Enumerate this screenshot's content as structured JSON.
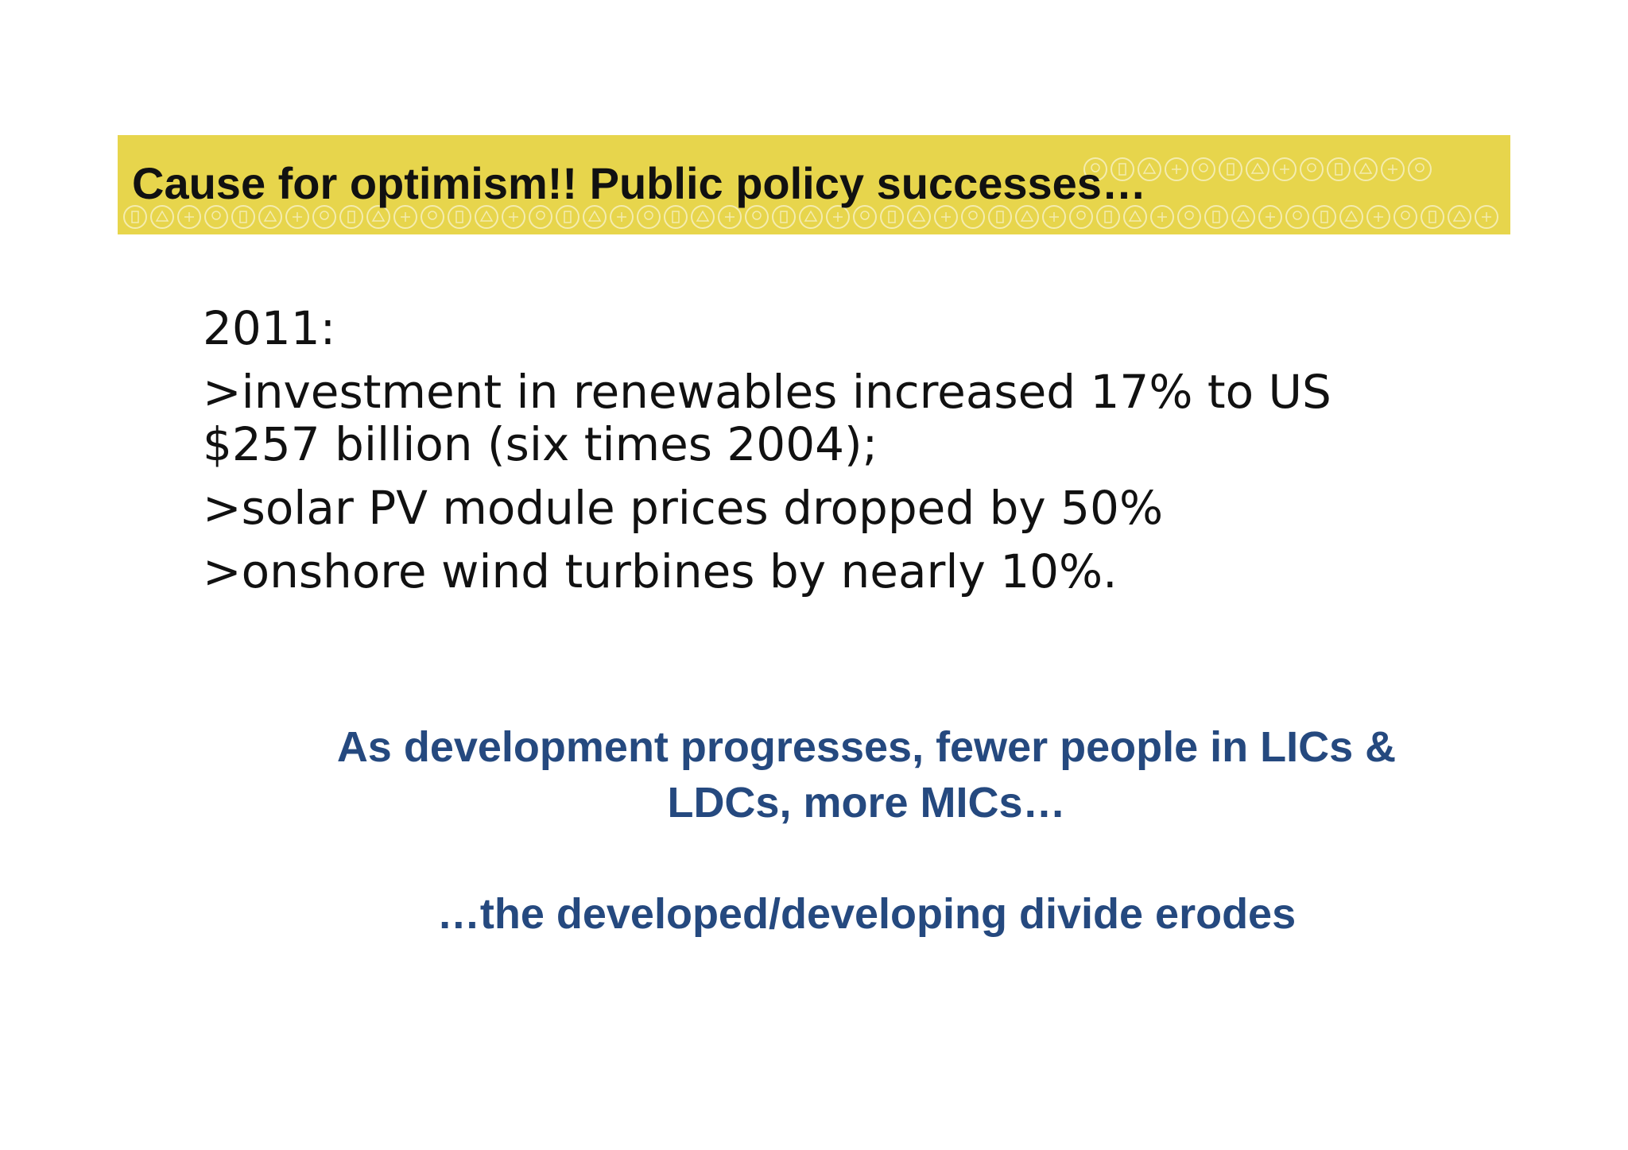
{
  "slide": {
    "header": {
      "title": "Cause for optimism!! Public policy successes…",
      "background_color": "#e7d54c",
      "pattern": "circled-energy-icons"
    },
    "body": {
      "lines": [
        "2011:",
        ">investment in renewables increased 17% to US $257 billion (six times 2004);",
        ">solar PV module prices dropped by 50%",
        ">onshore wind turbines by nearly 10%."
      ]
    },
    "callout": {
      "line1": "As development progresses, fewer people in LICs & LDCs, more MICs…",
      "line2": "…the developed/developing divide erodes",
      "color": "#25497f"
    }
  }
}
